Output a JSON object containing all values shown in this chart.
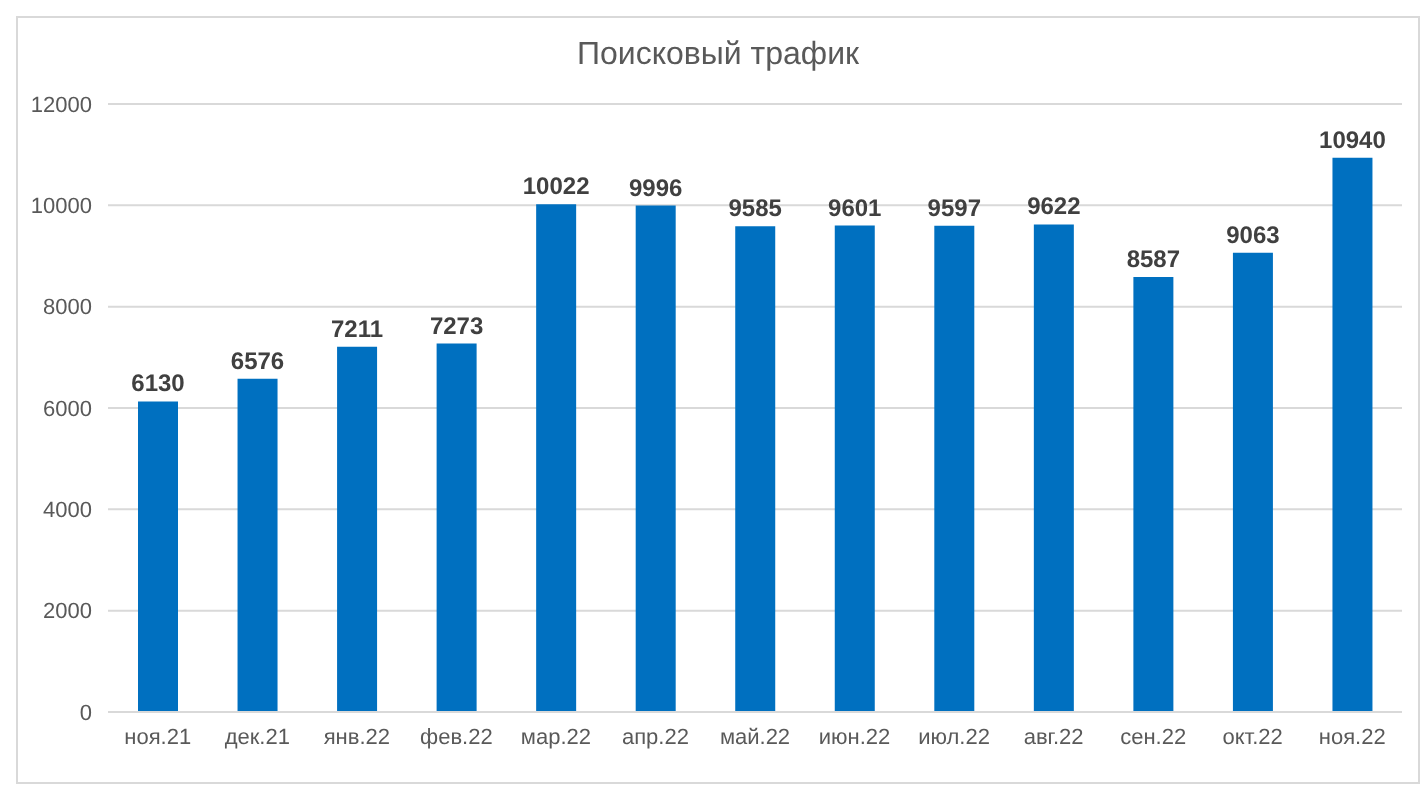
{
  "chart_data": {
    "type": "bar",
    "title": "Поисковый трафик",
    "categories": [
      "ноя.21",
      "дек.21",
      "янв.22",
      "фев.22",
      "мар.22",
      "апр.22",
      "май.22",
      "июн.22",
      "июл.22",
      "авг.22",
      "сен.22",
      "окт.22",
      "ноя.22"
    ],
    "values": [
      6130,
      6576,
      7211,
      7273,
      10022,
      9996,
      9585,
      9601,
      9597,
      9622,
      8587,
      9063,
      10940
    ],
    "color": "#0070c0",
    "ylim": [
      0,
      12000
    ],
    "yticks": [
      0,
      2000,
      4000,
      6000,
      8000,
      10000,
      12000
    ],
    "grid": "y",
    "data_labels": true
  }
}
